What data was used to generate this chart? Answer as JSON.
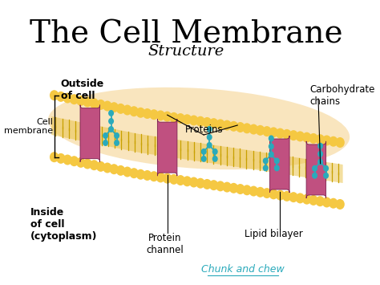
{
  "title": "The Cell Membrane",
  "subtitle": "Structure",
  "bg_color": "#ffffff",
  "title_fontsize": 28,
  "subtitle_fontsize": 14,
  "membrane_color": "#F5C842",
  "protein_color": "#C05080",
  "carb_color": "#2aaabb",
  "tail_color": "#C8A000",
  "label_color": "#000000",
  "watermark_color": "#2aaabb",
  "watermark_text": "Chunk and chew",
  "labels": {
    "outside": "Outside\nof cell",
    "inside": "Inside\nof cell\n(cytoplasm)",
    "cell_membrane": "Cell\nmembrane",
    "proteins": "Proteins",
    "carbohydrate": "Carbohydrate\nchains",
    "protein_channel": "Protein\nchannel",
    "lipid_bilayer": "Lipid bilayer"
  }
}
